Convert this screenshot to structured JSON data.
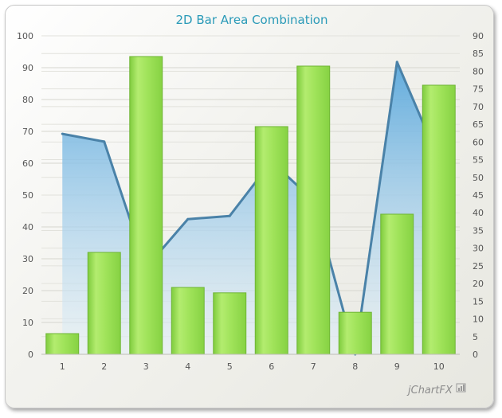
{
  "chart_data": {
    "type": "bar+area",
    "title": "2D Bar Area Combination",
    "categories": [
      "1",
      "2",
      "3",
      "4",
      "5",
      "6",
      "7",
      "8",
      "9",
      "10"
    ],
    "bar_series": {
      "axis": "left",
      "values": [
        6.5,
        32,
        93.5,
        21,
        19.3,
        71.5,
        90.5,
        13.2,
        44,
        84.5
      ],
      "color": "#9ee055"
    },
    "area_series": {
      "axis": "right",
      "values": [
        62.3,
        60.1,
        24.5,
        38.2,
        39.1,
        54.5,
        43.5,
        0,
        82.6,
        55
      ],
      "line_color": "#4a82a8",
      "fill_color": "#6fb2de"
    },
    "y_left": {
      "min": 0,
      "max": 100,
      "step": 10
    },
    "y_right": {
      "min": 0,
      "max": 90,
      "step": 5
    },
    "grid": true,
    "brand": "jChartFX"
  }
}
